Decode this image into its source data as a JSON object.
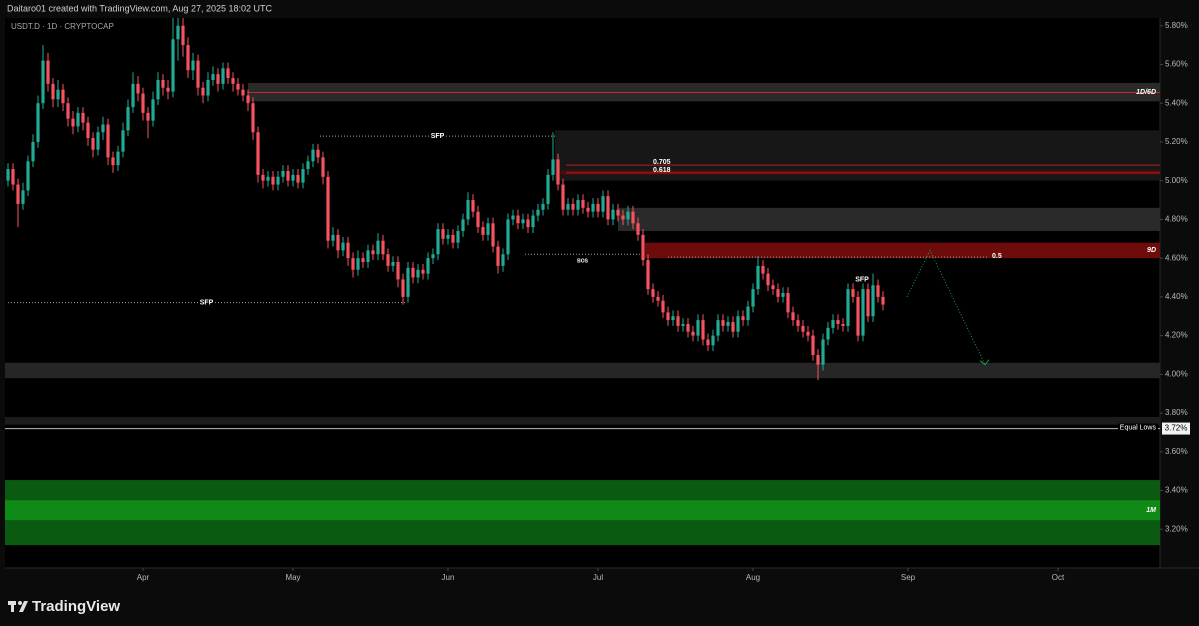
{
  "header": {
    "text": "Daitaro01 created with TradingView.com, Aug 27, 2025 18:02 UTC"
  },
  "chart_data": {
    "type": "candlestick",
    "title": "USDT.D · 1D · CRYPTOCAP",
    "up_color": "#22ab94",
    "down_color": "#f7525f",
    "open": [
      5.0,
      5.06,
      4.98,
      4.88,
      4.95,
      5.1,
      5.2,
      5.4,
      5.62,
      5.5,
      5.42,
      5.47,
      5.4,
      5.32,
      5.28,
      5.35,
      5.3,
      5.22,
      5.16,
      5.25,
      5.29,
      5.12,
      5.08,
      5.15,
      5.26,
      5.38,
      5.5,
      5.45,
      5.35,
      5.31,
      5.42,
      5.52,
      5.48,
      5.46,
      5.73,
      5.8,
      5.7,
      5.57,
      5.62,
      5.48,
      5.44,
      5.52,
      5.55,
      5.5,
      5.58,
      5.53,
      5.5,
      5.47,
      5.44,
      5.4,
      5.25,
      5.03,
      5.0,
      5.02,
      4.98,
      5.02,
      5.05,
      5.0,
      5.03,
      4.99,
      5.06,
      5.1,
      5.16,
      5.12,
      5.02,
      4.69,
      4.72,
      4.64,
      4.68,
      4.6,
      4.54,
      4.6,
      4.58,
      4.64,
      4.62,
      4.69,
      4.62,
      4.56,
      4.58,
      4.49,
      4.4,
      4.55,
      4.5,
      4.54,
      4.52,
      4.6,
      4.62,
      4.75,
      4.7,
      4.72,
      4.68,
      4.74,
      4.8,
      4.9,
      4.84,
      4.76,
      4.72,
      4.78,
      4.66,
      4.56,
      4.62,
      4.8,
      4.82,
      4.78,
      4.8,
      4.76,
      4.82,
      4.85,
      4.88,
      5.03,
      5.11,
      4.98,
      4.85,
      4.88,
      4.85,
      4.9,
      4.86,
      4.84,
      4.88,
      4.84,
      4.92,
      4.8,
      4.85,
      4.82,
      4.8,
      4.84,
      4.78,
      4.72,
      4.59,
      4.44,
      4.4,
      4.38,
      4.32,
      4.28,
      4.3,
      4.25,
      4.26,
      4.22,
      4.2,
      4.28,
      4.18,
      4.15,
      4.2,
      4.28,
      4.25,
      4.27,
      4.22,
      4.3,
      4.28,
      4.35,
      4.44,
      4.56,
      4.52,
      4.46,
      4.44,
      4.4,
      4.42,
      4.32,
      4.28,
      4.25,
      4.22,
      4.2,
      4.1,
      4.05,
      4.18,
      4.24,
      4.28,
      4.26,
      4.25,
      4.44,
      4.4,
      4.2,
      4.44,
      4.3,
      4.46,
      4.4
    ],
    "high": [
      5.09,
      5.09,
      5.01,
      4.99,
      5.13,
      5.24,
      5.44,
      5.7,
      5.66,
      5.53,
      5.52,
      5.5,
      5.43,
      5.36,
      5.38,
      5.38,
      5.33,
      5.25,
      5.28,
      5.33,
      5.32,
      5.15,
      5.18,
      5.3,
      5.42,
      5.56,
      5.54,
      5.48,
      5.38,
      5.46,
      5.56,
      5.55,
      5.52,
      5.84,
      5.84,
      5.84,
      5.74,
      5.66,
      5.65,
      5.51,
      5.56,
      5.59,
      5.58,
      5.61,
      5.61,
      5.56,
      5.53,
      5.5,
      5.47,
      5.43,
      5.28,
      5.06,
      5.05,
      5.05,
      5.05,
      5.08,
      5.08,
      5.06,
      5.06,
      5.09,
      5.13,
      5.19,
      5.19,
      5.15,
      5.05,
      4.76,
      4.75,
      4.71,
      4.71,
      4.63,
      4.64,
      4.63,
      4.67,
      4.67,
      4.73,
      4.72,
      4.65,
      4.61,
      4.61,
      4.52,
      4.58,
      4.58,
      4.57,
      4.57,
      4.63,
      4.65,
      4.78,
      4.78,
      4.75,
      4.75,
      4.77,
      4.83,
      4.94,
      4.93,
      4.87,
      4.79,
      4.81,
      4.81,
      4.69,
      4.65,
      4.83,
      4.85,
      4.85,
      4.83,
      4.83,
      4.85,
      4.88,
      4.91,
      5.06,
      5.25,
      5.14,
      5.01,
      4.91,
      4.91,
      4.93,
      4.93,
      4.89,
      4.91,
      4.91,
      4.95,
      4.95,
      4.88,
      4.88,
      4.85,
      4.87,
      4.87,
      4.81,
      4.75,
      4.62,
      4.47,
      4.43,
      4.41,
      4.35,
      4.33,
      4.33,
      4.29,
      4.29,
      4.25,
      4.31,
      4.31,
      4.21,
      4.23,
      4.31,
      4.31,
      4.3,
      4.3,
      4.33,
      4.33,
      4.38,
      4.47,
      4.61,
      4.59,
      4.55,
      4.49,
      4.47,
      4.45,
      4.45,
      4.35,
      4.31,
      4.28,
      4.25,
      4.23,
      4.13,
      4.21,
      4.27,
      4.31,
      4.31,
      4.29,
      4.47,
      4.47,
      4.43,
      4.47,
      4.47,
      4.52,
      4.49,
      4.43
    ],
    "low": [
      4.97,
      4.95,
      4.76,
      4.85,
      4.92,
      5.07,
      5.17,
      5.37,
      5.46,
      5.38,
      5.38,
      5.36,
      5.28,
      5.24,
      5.25,
      5.26,
      5.18,
      5.12,
      5.13,
      5.21,
      5.08,
      5.04,
      5.05,
      5.12,
      5.23,
      5.35,
      5.41,
      5.31,
      5.22,
      5.28,
      5.39,
      5.44,
      5.42,
      5.43,
      5.62,
      5.64,
      5.53,
      5.52,
      5.44,
      5.4,
      5.41,
      5.49,
      5.46,
      5.47,
      5.5,
      5.46,
      5.44,
      5.41,
      5.36,
      5.21,
      4.99,
      4.96,
      4.97,
      4.95,
      4.95,
      4.99,
      4.97,
      4.97,
      4.96,
      4.96,
      5.03,
      5.07,
      5.09,
      4.98,
      4.65,
      4.66,
      4.6,
      4.61,
      4.56,
      4.5,
      4.51,
      4.55,
      4.55,
      4.59,
      4.59,
      4.59,
      4.53,
      4.53,
      4.45,
      4.36,
      4.37,
      4.47,
      4.47,
      4.49,
      4.49,
      4.57,
      4.59,
      4.67,
      4.67,
      4.65,
      4.65,
      4.71,
      4.77,
      4.81,
      4.73,
      4.69,
      4.69,
      4.63,
      4.52,
      4.53,
      4.59,
      4.77,
      4.75,
      4.75,
      4.73,
      4.73,
      4.79,
      4.82,
      4.85,
      5.0,
      4.95,
      4.82,
      4.82,
      4.82,
      4.82,
      4.83,
      4.81,
      4.81,
      4.81,
      4.81,
      4.77,
      4.77,
      4.79,
      4.77,
      4.77,
      4.75,
      4.69,
      4.56,
      4.41,
      4.37,
      4.35,
      4.29,
      4.25,
      4.25,
      4.22,
      4.22,
      4.19,
      4.17,
      4.17,
      4.15,
      4.12,
      4.12,
      4.17,
      4.22,
      4.22,
      4.19,
      4.19,
      4.25,
      4.25,
      4.32,
      4.41,
      4.49,
      4.43,
      4.41,
      4.37,
      4.37,
      4.29,
      4.25,
      4.22,
      4.19,
      4.17,
      4.07,
      3.97,
      4.02,
      4.15,
      4.21,
      4.23,
      4.22,
      4.22,
      4.37,
      4.17,
      4.17,
      4.27,
      4.27,
      4.37,
      4.33
    ],
    "close": [
      5.06,
      4.98,
      4.88,
      4.95,
      5.1,
      5.2,
      5.4,
      5.62,
      5.5,
      5.42,
      5.47,
      5.4,
      5.32,
      5.28,
      5.35,
      5.3,
      5.22,
      5.16,
      5.25,
      5.29,
      5.12,
      5.08,
      5.15,
      5.26,
      5.38,
      5.5,
      5.45,
      5.35,
      5.31,
      5.42,
      5.52,
      5.48,
      5.46,
      5.73,
      5.8,
      5.7,
      5.57,
      5.62,
      5.48,
      5.44,
      5.52,
      5.55,
      5.5,
      5.58,
      5.53,
      5.5,
      5.47,
      5.44,
      5.4,
      5.25,
      5.03,
      5.0,
      5.02,
      4.98,
      5.02,
      5.05,
      5.0,
      5.03,
      4.99,
      5.06,
      5.1,
      5.16,
      5.12,
      5.02,
      4.69,
      4.72,
      4.64,
      4.68,
      4.6,
      4.54,
      4.6,
      4.58,
      4.64,
      4.62,
      4.69,
      4.62,
      4.56,
      4.58,
      4.49,
      4.4,
      4.55,
      4.5,
      4.54,
      4.52,
      4.6,
      4.62,
      4.75,
      4.7,
      4.72,
      4.68,
      4.74,
      4.8,
      4.9,
      4.84,
      4.76,
      4.72,
      4.78,
      4.66,
      4.56,
      4.62,
      4.8,
      4.82,
      4.78,
      4.8,
      4.76,
      4.82,
      4.85,
      4.88,
      5.03,
      5.11,
      4.98,
      4.85,
      4.88,
      4.85,
      4.9,
      4.86,
      4.84,
      4.88,
      4.84,
      4.92,
      4.8,
      4.85,
      4.82,
      4.8,
      4.84,
      4.78,
      4.72,
      4.59,
      4.44,
      4.4,
      4.38,
      4.32,
      4.28,
      4.3,
      4.25,
      4.26,
      4.22,
      4.2,
      4.28,
      4.18,
      4.15,
      4.2,
      4.28,
      4.25,
      4.27,
      4.22,
      4.3,
      4.28,
      4.35,
      4.44,
      4.56,
      4.52,
      4.46,
      4.44,
      4.4,
      4.42,
      4.32,
      4.28,
      4.25,
      4.22,
      4.2,
      4.1,
      4.05,
      4.18,
      4.24,
      4.28,
      4.26,
      4.25,
      4.44,
      4.4,
      4.2,
      4.44,
      4.3,
      4.46,
      4.4,
      4.36
    ],
    "xlim": [
      -0.6,
      230.4
    ],
    "xticks": [
      {
        "value": 27,
        "label": "Apr"
      },
      {
        "value": 57,
        "label": "May"
      },
      {
        "value": 88,
        "label": "Jun"
      },
      {
        "value": 118,
        "label": "Jul"
      },
      {
        "value": 149,
        "label": "Aug"
      },
      {
        "value": 180,
        "label": "Sep"
      },
      {
        "value": 210,
        "label": "Oct"
      }
    ],
    "ylim": [
      3.0,
      5.84
    ],
    "yticks": [
      {
        "value": 5.8,
        "label": "5.80%"
      },
      {
        "value": 5.6,
        "label": "5.60%"
      },
      {
        "value": 5.4,
        "label": "5.40%"
      },
      {
        "value": 5.2,
        "label": "5.20%"
      },
      {
        "value": 5.0,
        "label": "5.00%"
      },
      {
        "value": 4.8,
        "label": "4.80%"
      },
      {
        "value": 4.6,
        "label": "4.60%"
      },
      {
        "value": 4.4,
        "label": "4.40%"
      },
      {
        "value": 4.2,
        "label": "4.20%"
      },
      {
        "value": 4.0,
        "label": "4.00%"
      },
      {
        "value": 3.8,
        "label": "3.80%"
      },
      {
        "value": 3.6,
        "label": "3.60%"
      },
      {
        "value": 3.4,
        "label": "3.40%"
      },
      {
        "value": 3.2,
        "label": "3.20%"
      }
    ],
    "zones": [
      {
        "from": 5.0,
        "to": 5.26,
        "x": [
          109.4
        ],
        "color": "#171717"
      },
      {
        "label": "1D/6D",
        "from": 5.41,
        "to": 5.505,
        "x": [
          48
        ],
        "color": "#2a2a2a"
      },
      {
        "from": 5.03,
        "to": 5.055,
        "x": [
          110.6
        ],
        "color": "#4a0c0c"
      },
      {
        "from": 4.74,
        "to": 4.86,
        "x": [
          122
        ],
        "color": "#2a2a2a"
      },
      {
        "label": "9D",
        "from": 4.6,
        "to": 4.68,
        "x": [
          127.4
        ],
        "color": "#6e0b0b"
      },
      {
        "from": 3.98,
        "to": 4.06,
        "color": "#262626"
      },
      {
        "from": 3.74,
        "to": 3.78,
        "color": "#1c1c1c"
      },
      {
        "from": 3.118,
        "to": 3.454,
        "color": "#0b5a12"
      },
      {
        "label": "1M",
        "from": 3.247,
        "to": 3.35,
        "color": "#0f8a16"
      }
    ],
    "levels": [
      {
        "value": 5.455,
        "x": [
          48
        ],
        "color": "#c62828",
        "style": "solid"
      },
      {
        "label": "SFP",
        "value": 5.23,
        "x": [
          62.4,
          109.4
        ],
        "color": "#9e9e9e",
        "style": "dotted",
        "label_pos": "center"
      },
      {
        "label": "0.705",
        "value": 5.08,
        "x": [
          111.6
        ],
        "color": "#b71c1c",
        "style": "solid",
        "label_pos": "start"
      },
      {
        "label": "0.618",
        "value": 5.04,
        "x": [
          111.6
        ],
        "color": "#b71c1c",
        "style": "solid",
        "label_pos": "start"
      },
      {
        "label": "BOS",
        "value": 4.62,
        "x": [
          103.4,
          126.4
        ],
        "color": "#9e9e9e",
        "style": "dotted",
        "label_pos": "below"
      },
      {
        "label": "0.5",
        "value": 4.605,
        "x": [
          132,
          196
        ],
        "color": "#9e9e9e",
        "style": "dotted",
        "label_pos": "end"
      },
      {
        "label": "SFP",
        "value": 4.37,
        "x": [
          0,
          79.4
        ],
        "color": "#9e9e9e",
        "style": "dotted",
        "label_pos": "center"
      },
      {
        "label": "Equal Lows",
        "value": 3.72,
        "axis_label": "3.72%",
        "color": "#bdbdbd",
        "style": "solid",
        "label_pos": "right"
      }
    ],
    "annotations": [
      {
        "text": "SFP",
        "x": 170.8,
        "y": 4.49
      }
    ],
    "projection": {
      "x": [
        179.8,
        184.4,
        195.4
      ],
      "y": [
        4.4,
        4.64,
        4.05
      ],
      "color": "#1f9d3a"
    }
  },
  "footer": {
    "brand": "TradingView"
  }
}
